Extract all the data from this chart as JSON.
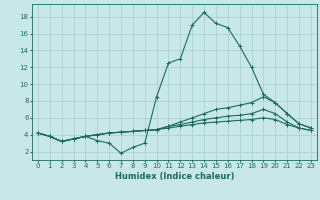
{
  "xlabel": "Humidex (Indice chaleur)",
  "bg_color": "#c8e8e8",
  "grid_color": "#a8cccc",
  "line_color": "#1a6b5a",
  "xlim": [
    -0.5,
    23.5
  ],
  "ylim": [
    1.0,
    19.5
  ],
  "yticks": [
    2,
    4,
    6,
    8,
    10,
    12,
    14,
    16,
    18
  ],
  "xticks": [
    0,
    1,
    2,
    3,
    4,
    5,
    6,
    7,
    8,
    9,
    10,
    11,
    12,
    13,
    14,
    15,
    16,
    17,
    18,
    19,
    20,
    21,
    22,
    23
  ],
  "series": [
    [
      4.2,
      3.8,
      3.2,
      3.5,
      3.8,
      3.3,
      3.0,
      1.8,
      2.5,
      3.0,
      8.5,
      12.5,
      13.0,
      17.0,
      18.5,
      17.2,
      16.7,
      14.5,
      12.0,
      8.8,
      7.8,
      6.5,
      5.3,
      4.8
    ],
    [
      4.2,
      3.8,
      3.2,
      3.5,
      3.8,
      4.0,
      4.2,
      4.3,
      4.4,
      4.5,
      4.6,
      5.0,
      5.5,
      6.0,
      6.5,
      7.0,
      7.2,
      7.5,
      7.8,
      8.5,
      7.8,
      6.5,
      5.3,
      4.8
    ],
    [
      4.2,
      3.8,
      3.2,
      3.5,
      3.8,
      4.0,
      4.2,
      4.3,
      4.4,
      4.5,
      4.6,
      5.0,
      5.2,
      5.5,
      5.8,
      6.0,
      6.2,
      6.3,
      6.5,
      7.0,
      6.5,
      5.5,
      4.8,
      4.5
    ],
    [
      4.2,
      3.8,
      3.2,
      3.5,
      3.8,
      4.0,
      4.2,
      4.3,
      4.4,
      4.5,
      4.6,
      4.8,
      5.0,
      5.2,
      5.4,
      5.5,
      5.6,
      5.7,
      5.8,
      6.0,
      5.8,
      5.2,
      4.8,
      4.5
    ]
  ],
  "font_size_ticks": 5.0,
  "font_size_xlabel": 6.0
}
